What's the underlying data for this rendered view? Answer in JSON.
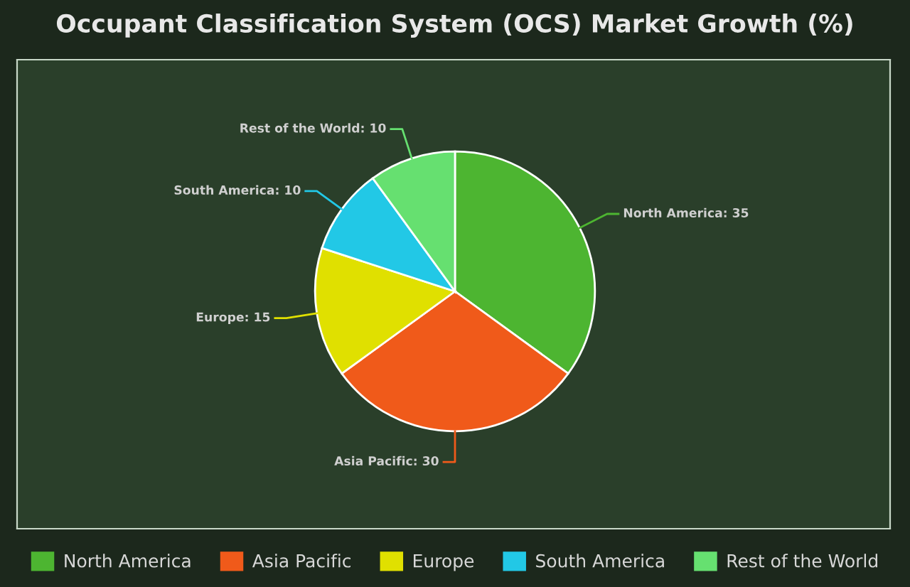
{
  "chart_data": {
    "type": "pie",
    "title": "Occupant Classification System (OCS) Market Growth (%)",
    "categories": [
      "North America",
      "Asia Pacific",
      "Europe",
      "South America",
      "Rest of the World"
    ],
    "values": [
      35,
      30,
      15,
      10,
      10
    ],
    "colors": [
      "#4db531",
      "#f05a1a",
      "#e0e000",
      "#22c8e6",
      "#66e070"
    ],
    "value_labels": [
      "North America: 35",
      "Asia Pacific: 30",
      "Europe: 15",
      "South America: 10",
      "Rest of the World: 10"
    ],
    "legend": "bottom"
  }
}
